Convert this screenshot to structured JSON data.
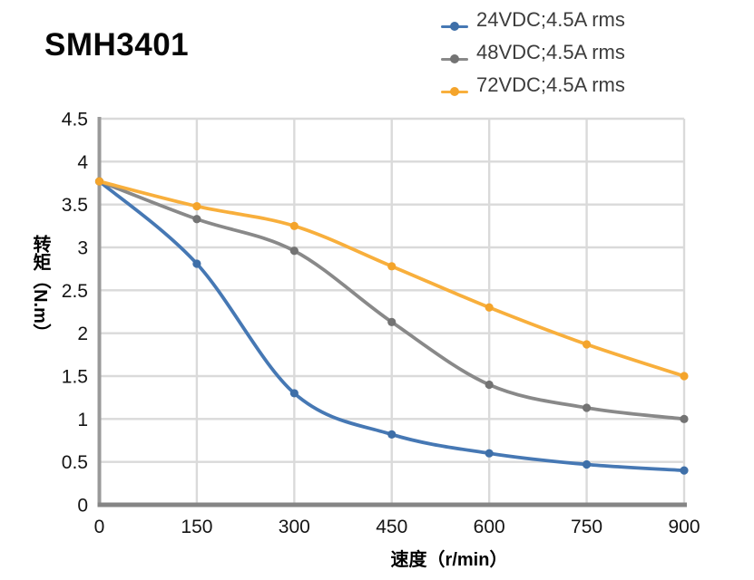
{
  "title": "SMH3401",
  "axes": {
    "x_label": "速度（r/min）",
    "y_label": "转矩（N.m）"
  },
  "chart_data": {
    "type": "line",
    "title": "SMH3401",
    "xlabel": "速度（r/min）",
    "ylabel": "转矩（N.m）",
    "x": [
      0,
      150,
      300,
      450,
      600,
      750,
      900
    ],
    "x_ticks": [
      0,
      150,
      300,
      450,
      600,
      750,
      900
    ],
    "y_ticks": [
      0,
      0.5,
      1,
      1.5,
      2,
      2.5,
      3,
      3.5,
      4,
      4.5
    ],
    "xlim": [
      0,
      900
    ],
    "ylim": [
      0,
      4.5
    ],
    "grid": true,
    "smooth": true,
    "legend_position": "top-right",
    "grid_color": "#dadada",
    "y_axis_color": "#9a9a9a",
    "x_axis_color": "#858585",
    "series": [
      {
        "name": "24VDC;4.5A rms",
        "color": "#4678b4",
        "marker_color": "#3e6fa8",
        "values": [
          3.77,
          2.81,
          1.3,
          0.82,
          0.6,
          0.47,
          0.4
        ]
      },
      {
        "name": "48VDC;4.5A rms",
        "color": "#898989",
        "marker_color": "#737373",
        "values": [
          3.77,
          3.33,
          2.96,
          2.13,
          1.4,
          1.13,
          1.0
        ]
      },
      {
        "name": "72VDC;4.5A rms",
        "color": "#f8af3c",
        "marker_color": "#f4a42b",
        "values": [
          3.77,
          3.48,
          3.25,
          2.78,
          2.3,
          1.87,
          1.5
        ]
      }
    ]
  }
}
